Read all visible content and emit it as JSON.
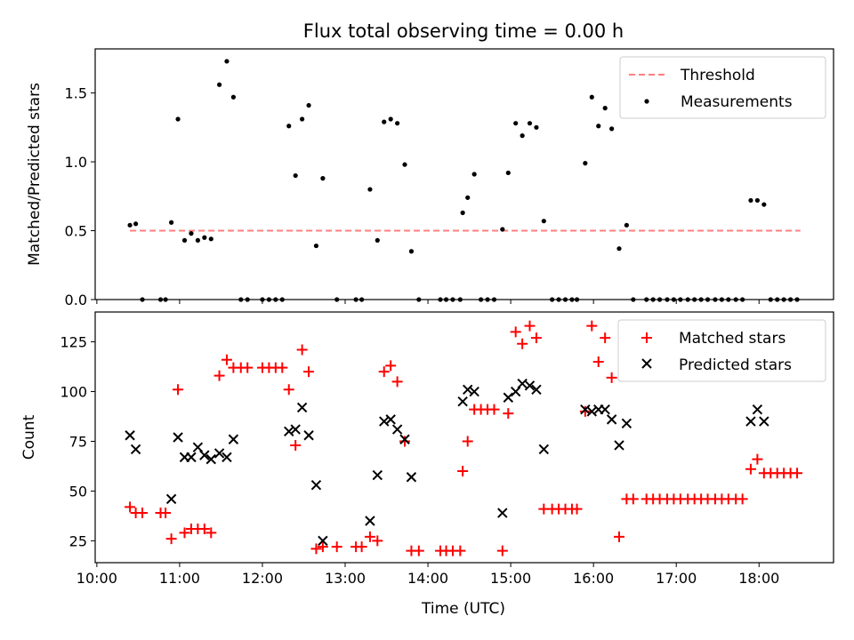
{
  "chart_data": [
    {
      "type": "scatter",
      "title": "Flux total observing time = 0.00 h",
      "xlabel": "",
      "ylabel": "Matched/Predicted stars",
      "xlim": [
        9.98,
        18.9
      ],
      "ylim": [
        0,
        1.82
      ],
      "x_ticks": [
        10,
        11,
        12,
        13,
        14,
        15,
        16,
        17,
        18
      ],
      "x_tick_labels": [
        "",
        "",
        "",
        "",
        "",
        "",
        "",
        "",
        ""
      ],
      "y_ticks": [
        0.0,
        0.5,
        1.0,
        1.5
      ],
      "y_tick_labels": [
        "0.0",
        "0.5",
        "1.0",
        "1.5"
      ],
      "legend": {
        "placement": "top-right",
        "entries": [
          "Threshold",
          "Measurements"
        ]
      },
      "colors": {
        "threshold": "#ff7f7f",
        "measurements": "#000000"
      },
      "series": [
        {
          "name": "Threshold",
          "kind": "line",
          "style": "dashed",
          "x": [
            10.4,
            18.5
          ],
          "values": [
            0.5,
            0.5
          ]
        },
        {
          "name": "Measurements",
          "kind": "scatter",
          "marker": "dot",
          "points": [
            [
              10.4,
              0.54
            ],
            [
              10.47,
              0.55
            ],
            [
              10.55,
              0.0
            ],
            [
              10.77,
              0.0
            ],
            [
              10.83,
              0.0
            ],
            [
              10.9,
              0.56
            ],
            [
              10.98,
              1.31
            ],
            [
              11.06,
              0.43
            ],
            [
              11.14,
              0.48
            ],
            [
              11.22,
              0.43
            ],
            [
              11.3,
              0.45
            ],
            [
              11.38,
              0.44
            ],
            [
              11.48,
              1.56
            ],
            [
              11.57,
              1.73
            ],
            [
              11.65,
              1.47
            ],
            [
              11.74,
              0.0
            ],
            [
              11.82,
              0.0
            ],
            [
              12.0,
              0.0
            ],
            [
              12.08,
              0.0
            ],
            [
              12.16,
              0.0
            ],
            [
              12.24,
              0.0
            ],
            [
              12.32,
              1.26
            ],
            [
              12.4,
              0.9
            ],
            [
              12.48,
              1.31
            ],
            [
              12.56,
              1.41
            ],
            [
              12.65,
              0.39
            ],
            [
              12.73,
              0.88
            ],
            [
              12.9,
              0.0
            ],
            [
              13.13,
              0.0
            ],
            [
              13.2,
              0.0
            ],
            [
              13.3,
              0.8
            ],
            [
              13.39,
              0.43
            ],
            [
              13.47,
              1.29
            ],
            [
              13.55,
              1.31
            ],
            [
              13.63,
              1.28
            ],
            [
              13.72,
              0.98
            ],
            [
              13.8,
              0.35
            ],
            [
              13.89,
              0.0
            ],
            [
              14.15,
              0.0
            ],
            [
              14.22,
              0.0
            ],
            [
              14.3,
              0.0
            ],
            [
              14.39,
              0.0
            ],
            [
              14.42,
              0.63
            ],
            [
              14.48,
              0.74
            ],
            [
              14.56,
              0.91
            ],
            [
              14.64,
              0.0
            ],
            [
              14.72,
              0.0
            ],
            [
              14.8,
              0.0
            ],
            [
              14.9,
              0.51
            ],
            [
              14.97,
              0.92
            ],
            [
              15.06,
              1.28
            ],
            [
              15.14,
              1.19
            ],
            [
              15.23,
              1.28
            ],
            [
              15.31,
              1.25
            ],
            [
              15.4,
              0.57
            ],
            [
              15.5,
              0.0
            ],
            [
              15.58,
              0.0
            ],
            [
              15.66,
              0.0
            ],
            [
              15.74,
              0.0
            ],
            [
              15.8,
              0.0
            ],
            [
              15.9,
              0.99
            ],
            [
              15.98,
              1.47
            ],
            [
              16.06,
              1.26
            ],
            [
              16.14,
              1.39
            ],
            [
              16.22,
              1.24
            ],
            [
              16.31,
              0.37
            ],
            [
              16.4,
              0.54
            ],
            [
              16.48,
              0.0
            ],
            [
              16.64,
              0.0
            ],
            [
              16.72,
              0.0
            ],
            [
              16.8,
              0.0
            ],
            [
              16.89,
              0.0
            ],
            [
              16.97,
              0.0
            ],
            [
              17.05,
              0.0
            ],
            [
              17.14,
              0.0
            ],
            [
              17.22,
              0.0
            ],
            [
              17.3,
              0.0
            ],
            [
              17.38,
              0.0
            ],
            [
              17.47,
              0.0
            ],
            [
              17.55,
              0.0
            ],
            [
              17.63,
              0.0
            ],
            [
              17.72,
              0.0
            ],
            [
              17.8,
              0.0
            ],
            [
              17.9,
              0.72
            ],
            [
              17.98,
              0.72
            ],
            [
              18.06,
              0.69
            ],
            [
              18.14,
              0.0
            ],
            [
              18.22,
              0.0
            ],
            [
              18.3,
              0.0
            ],
            [
              18.38,
              0.0
            ],
            [
              18.46,
              0.0
            ]
          ]
        }
      ]
    },
    {
      "type": "scatter",
      "title": "",
      "xlabel": "Time (UTC)",
      "ylabel": "Count",
      "xlim": [
        9.98,
        18.9
      ],
      "ylim": [
        14,
        140
      ],
      "x_ticks": [
        10,
        11,
        12,
        13,
        14,
        15,
        16,
        17,
        18
      ],
      "x_tick_labels": [
        "10:00",
        "11:00",
        "12:00",
        "13:00",
        "14:00",
        "15:00",
        "16:00",
        "17:00",
        "18:00"
      ],
      "y_ticks": [
        25,
        50,
        75,
        100,
        125
      ],
      "y_tick_labels": [
        "25",
        "50",
        "75",
        "100",
        "125"
      ],
      "legend": {
        "placement": "top-right",
        "entries": [
          "Matched stars",
          "Predicted stars"
        ]
      },
      "colors": {
        "matched": "#ff0000",
        "predicted": "#000000"
      },
      "series": [
        {
          "name": "Matched stars",
          "kind": "scatter",
          "marker": "plus",
          "points": [
            [
              10.4,
              42
            ],
            [
              10.47,
              39
            ],
            [
              10.55,
              39
            ],
            [
              10.77,
              39
            ],
            [
              10.83,
              39
            ],
            [
              10.9,
              26
            ],
            [
              10.98,
              101
            ],
            [
              11.06,
              29
            ],
            [
              11.14,
              31
            ],
            [
              11.22,
              31
            ],
            [
              11.3,
              31
            ],
            [
              11.38,
              29
            ],
            [
              11.48,
              108
            ],
            [
              11.57,
              116
            ],
            [
              11.65,
              112
            ],
            [
              11.74,
              112
            ],
            [
              11.82,
              112
            ],
            [
              12.0,
              112
            ],
            [
              12.08,
              112
            ],
            [
              12.16,
              112
            ],
            [
              12.24,
              112
            ],
            [
              12.32,
              101
            ],
            [
              12.4,
              73
            ],
            [
              12.48,
              121
            ],
            [
              12.56,
              110
            ],
            [
              12.65,
              21
            ],
            [
              12.73,
              22
            ],
            [
              12.9,
              22
            ],
            [
              13.13,
              22
            ],
            [
              13.2,
              22
            ],
            [
              13.3,
              27
            ],
            [
              13.39,
              25
            ],
            [
              13.47,
              110
            ],
            [
              13.55,
              113
            ],
            [
              13.63,
              105
            ],
            [
              13.72,
              75
            ],
            [
              13.8,
              20
            ],
            [
              13.89,
              20
            ],
            [
              14.15,
              20
            ],
            [
              14.22,
              20
            ],
            [
              14.3,
              20
            ],
            [
              14.39,
              20
            ],
            [
              14.42,
              60
            ],
            [
              14.48,
              75
            ],
            [
              14.56,
              91
            ],
            [
              14.64,
              91
            ],
            [
              14.72,
              91
            ],
            [
              14.8,
              91
            ],
            [
              14.9,
              20
            ],
            [
              14.97,
              89
            ],
            [
              15.06,
              130
            ],
            [
              15.14,
              124
            ],
            [
              15.23,
              133
            ],
            [
              15.31,
              127
            ],
            [
              15.4,
              41
            ],
            [
              15.5,
              41
            ],
            [
              15.58,
              41
            ],
            [
              15.66,
              41
            ],
            [
              15.74,
              41
            ],
            [
              15.8,
              41
            ],
            [
              15.9,
              90
            ],
            [
              15.98,
              133
            ],
            [
              16.06,
              115
            ],
            [
              16.14,
              127
            ],
            [
              16.22,
              107
            ],
            [
              16.31,
              27
            ],
            [
              16.4,
              46
            ],
            [
              16.48,
              46
            ],
            [
              16.64,
              46
            ],
            [
              16.72,
              46
            ],
            [
              16.8,
              46
            ],
            [
              16.89,
              46
            ],
            [
              16.97,
              46
            ],
            [
              17.05,
              46
            ],
            [
              17.14,
              46
            ],
            [
              17.22,
              46
            ],
            [
              17.3,
              46
            ],
            [
              17.38,
              46
            ],
            [
              17.47,
              46
            ],
            [
              17.55,
              46
            ],
            [
              17.63,
              46
            ],
            [
              17.72,
              46
            ],
            [
              17.8,
              46
            ],
            [
              17.9,
              61
            ],
            [
              17.98,
              66
            ],
            [
              18.06,
              59
            ],
            [
              18.14,
              59
            ],
            [
              18.22,
              59
            ],
            [
              18.3,
              59
            ],
            [
              18.38,
              59
            ],
            [
              18.46,
              59
            ]
          ]
        },
        {
          "name": "Predicted stars",
          "kind": "scatter",
          "marker": "x",
          "points": [
            [
              10.4,
              78
            ],
            [
              10.47,
              71
            ],
            [
              10.9,
              46
            ],
            [
              10.98,
              77
            ],
            [
              11.06,
              67
            ],
            [
              11.14,
              67
            ],
            [
              11.22,
              72
            ],
            [
              11.3,
              68
            ],
            [
              11.38,
              66
            ],
            [
              11.48,
              69
            ],
            [
              11.57,
              67
            ],
            [
              11.65,
              76
            ],
            [
              12.32,
              80
            ],
            [
              12.4,
              81
            ],
            [
              12.48,
              92
            ],
            [
              12.56,
              78
            ],
            [
              12.65,
              53
            ],
            [
              12.73,
              25
            ],
            [
              13.3,
              35
            ],
            [
              13.39,
              58
            ],
            [
              13.47,
              85
            ],
            [
              13.55,
              86
            ],
            [
              13.63,
              81
            ],
            [
              13.72,
              76
            ],
            [
              13.8,
              57
            ],
            [
              14.42,
              95
            ],
            [
              14.48,
              101
            ],
            [
              14.56,
              100
            ],
            [
              14.9,
              39
            ],
            [
              14.97,
              97
            ],
            [
              15.06,
              100
            ],
            [
              15.14,
              104
            ],
            [
              15.23,
              103
            ],
            [
              15.31,
              101
            ],
            [
              15.4,
              71
            ],
            [
              15.9,
              91
            ],
            [
              15.98,
              90
            ],
            [
              16.06,
              91
            ],
            [
              16.14,
              91
            ],
            [
              16.22,
              86
            ],
            [
              16.31,
              73
            ],
            [
              16.4,
              84
            ],
            [
              17.9,
              85
            ],
            [
              17.98,
              91
            ],
            [
              18.06,
              85
            ]
          ]
        }
      ]
    }
  ]
}
